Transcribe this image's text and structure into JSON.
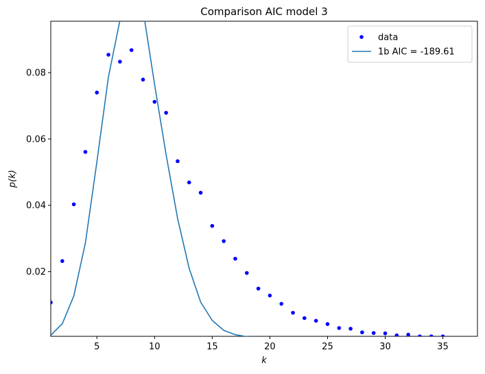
{
  "chart_data": {
    "type": "scatter",
    "title": "Comparison AIC model 3",
    "xlabel": "k",
    "ylabel": "p(k)",
    "xlim": [
      1,
      38
    ],
    "ylim": [
      0.0005,
      0.0955
    ],
    "x_ticks": [
      5,
      10,
      15,
      20,
      25,
      30,
      35
    ],
    "x_tick_labels": [
      "5",
      "10",
      "15",
      "20",
      "25",
      "30",
      "35"
    ],
    "y_ticks": [
      0.02,
      0.04,
      0.06,
      0.08
    ],
    "y_tick_labels": [
      "0.02",
      "0.04",
      "0.06",
      "0.08"
    ],
    "legend_position": "upper right",
    "series": [
      {
        "name": "data",
        "style": "points",
        "color": "#0000ff",
        "x": [
          1,
          2,
          3,
          4,
          5,
          6,
          7,
          8,
          9,
          10,
          11,
          12,
          13,
          14,
          15,
          16,
          17,
          18,
          19,
          20,
          21,
          22,
          23,
          24,
          25,
          26,
          27,
          28,
          29,
          30,
          31,
          32,
          33,
          34,
          35
        ],
        "y": [
          0.0107,
          0.0232,
          0.0403,
          0.0561,
          0.074,
          0.0854,
          0.0833,
          0.0868,
          0.0779,
          0.0712,
          0.0679,
          0.0533,
          0.0469,
          0.0438,
          0.0338,
          0.0292,
          0.0239,
          0.0196,
          0.0149,
          0.0128,
          0.0103,
          0.0076,
          0.006,
          0.0052,
          0.0042,
          0.003,
          0.0028,
          0.0017,
          0.0015,
          0.0014,
          0.0008,
          0.001,
          0.0005,
          0.0005,
          0.0005
        ]
      },
      {
        "name": "1b AIC = -189.61",
        "style": "line",
        "color": "#1f77b4",
        "x": [
          1,
          2,
          3,
          4,
          5,
          6,
          7,
          8,
          9,
          10,
          11,
          12,
          13,
          14,
          15,
          16,
          17,
          18,
          19,
          20,
          21,
          22,
          23,
          24,
          25,
          26,
          27,
          28,
          29,
          30,
          31,
          32,
          33,
          34,
          35
        ],
        "y": [
          0.0008,
          0.0043,
          0.0127,
          0.0286,
          0.0531,
          0.0787,
          0.0958,
          0.104,
          0.099,
          0.0765,
          0.0553,
          0.036,
          0.021,
          0.0108,
          0.0053,
          0.0023,
          0.001,
          0.0004,
          0.0002,
          0.0001,
          0.0,
          0.0,
          0.0,
          0.0,
          0.0,
          0.0,
          0.0,
          0.0,
          0.0,
          0.0,
          0.0,
          0.0,
          0.0,
          0.0,
          0.0
        ]
      }
    ]
  }
}
